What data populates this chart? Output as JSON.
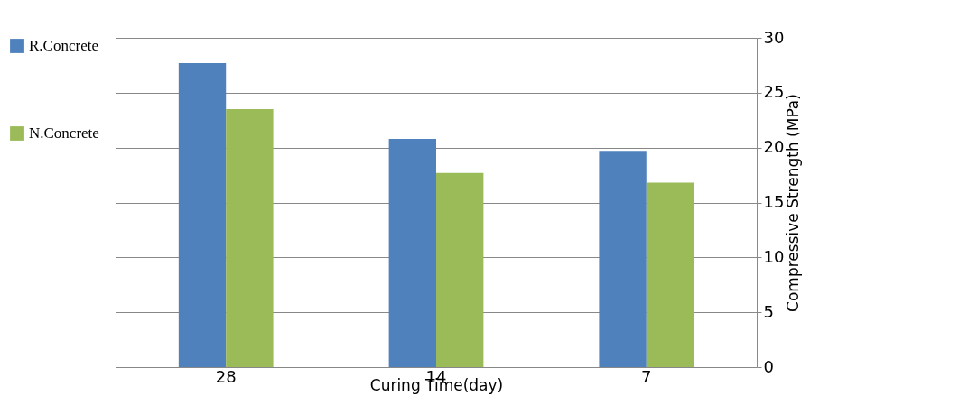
{
  "chart_data": {
    "type": "bar",
    "xlabel": "Curing Time(day)",
    "ylabel": "Compressive Strength (MPa)",
    "categories": [
      "28",
      "14",
      "7"
    ],
    "series": [
      {
        "name": "R.Concrete",
        "color": "#4f81bd",
        "values": [
          27.7,
          20.8,
          19.7
        ]
      },
      {
        "name": "N.Concrete",
        "color": "#9bbb59",
        "values": [
          23.5,
          17.7,
          16.8
        ]
      }
    ],
    "ylim": [
      0,
      30
    ],
    "yticks": [
      0,
      5,
      10,
      15,
      20,
      25,
      30
    ],
    "grid": "y",
    "legend": "left"
  }
}
